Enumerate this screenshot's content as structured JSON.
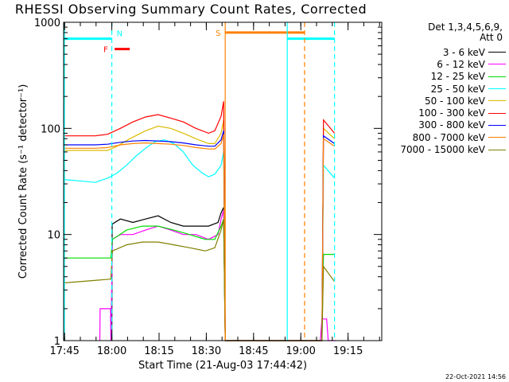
{
  "chart_data": {
    "type": "line",
    "title": "RHESSI Observing Summary Count Rates, Corrected",
    "xlabel": "Start Time (21-Aug-03 17:44:42)",
    "ylabel": "Corrected Count Rate (s⁻¹ detector⁻¹)",
    "yscale": "log",
    "ylim": [
      1,
      1000
    ],
    "xlim_minutes": [
      0,
      101
    ],
    "x_ticks": [
      "17:45",
      "18:00",
      "18:15",
      "18:30",
      "18:45",
      "19:00",
      "19:15"
    ],
    "x_tick_minutes": [
      0.3,
      15.3,
      30.3,
      45.3,
      60.3,
      75.3,
      90.3
    ],
    "y_ticks": [
      "1",
      "10",
      "100",
      "1000"
    ],
    "y_tick_values": [
      1,
      10,
      100,
      1000
    ],
    "detector_info": [
      "Det 1,3,4,5,6,9,",
      "Att 0"
    ],
    "series": [
      {
        "name": "3 - 6 keV",
        "color": "#000000",
        "points": [
          [
            15.3,
            1
          ],
          [
            15.4,
            12.5
          ],
          [
            18,
            14
          ],
          [
            22,
            13
          ],
          [
            26,
            14
          ],
          [
            30,
            15
          ],
          [
            34,
            13
          ],
          [
            38,
            12
          ],
          [
            42,
            12
          ],
          [
            46,
            12
          ],
          [
            49,
            13
          ],
          [
            50,
            16
          ],
          [
            50.8,
            18
          ],
          [
            51.3,
            1
          ]
        ]
      },
      {
        "name": "6 - 12 keV",
        "color": "#ff00ff",
        "points": [
          [
            11.5,
            1
          ],
          [
            11.6,
            2
          ],
          [
            14.9,
            2
          ],
          [
            15,
            1
          ],
          [
            15.5,
            9
          ],
          [
            18,
            10
          ],
          [
            22,
            10
          ],
          [
            26,
            11
          ],
          [
            30,
            12
          ],
          [
            34,
            11
          ],
          [
            38,
            10
          ],
          [
            42,
            10
          ],
          [
            46,
            9
          ],
          [
            49,
            10
          ],
          [
            50,
            14
          ],
          [
            50.8,
            17
          ],
          [
            51.3,
            1
          ],
          [
            76,
            1
          ],
          [
            81.5,
            1
          ],
          [
            82,
            1.6
          ],
          [
            83.5,
            1.6
          ],
          [
            84,
            1
          ],
          [
            86.5,
            1
          ]
        ]
      },
      {
        "name": "12 - 25 keV",
        "color": "#00dd00",
        "points": [
          [
            0,
            6
          ],
          [
            15,
            6
          ],
          [
            15.5,
            9
          ],
          [
            20,
            11
          ],
          [
            25,
            12
          ],
          [
            30,
            12
          ],
          [
            35,
            11
          ],
          [
            40,
            10
          ],
          [
            45,
            9
          ],
          [
            48,
            9
          ],
          [
            50,
            12
          ],
          [
            50.8,
            14
          ],
          [
            51.3,
            1
          ],
          [
            82,
            1
          ],
          [
            82.5,
            6.5
          ],
          [
            86,
            6.5
          ]
        ]
      },
      {
        "name": "25 - 50 keV",
        "color": "#00ffff",
        "points": [
          [
            0,
            33
          ],
          [
            5,
            32
          ],
          [
            10,
            31
          ],
          [
            14,
            34
          ],
          [
            17,
            38
          ],
          [
            20,
            45
          ],
          [
            23,
            55
          ],
          [
            26,
            65
          ],
          [
            29,
            75
          ],
          [
            32,
            78
          ],
          [
            35,
            72
          ],
          [
            38,
            60
          ],
          [
            41,
            45
          ],
          [
            44,
            38
          ],
          [
            46,
            35
          ],
          [
            48,
            37
          ],
          [
            50,
            45
          ],
          [
            50.8,
            60
          ],
          [
            51.3,
            1
          ],
          [
            82,
            1
          ],
          [
            82.5,
            45
          ],
          [
            86,
            34
          ]
        ]
      },
      {
        "name": "50 - 100 keV",
        "color": "#ddbb00",
        "points": [
          [
            0,
            62
          ],
          [
            10,
            62
          ],
          [
            14,
            62
          ],
          [
            17,
            68
          ],
          [
            21,
            80
          ],
          [
            26,
            95
          ],
          [
            30,
            105
          ],
          [
            34,
            100
          ],
          [
            38,
            90
          ],
          [
            42,
            80
          ],
          [
            46,
            72
          ],
          [
            48,
            72
          ],
          [
            50,
            90
          ],
          [
            50.8,
            120
          ],
          [
            51.3,
            1
          ],
          [
            82,
            1
          ],
          [
            82.5,
            100
          ],
          [
            86,
            80
          ]
        ]
      },
      {
        "name": "100 - 300 keV",
        "color": "#ff0000",
        "points": [
          [
            0,
            85
          ],
          [
            10,
            85
          ],
          [
            14,
            88
          ],
          [
            18,
            100
          ],
          [
            22,
            115
          ],
          [
            26,
            128
          ],
          [
            30,
            135
          ],
          [
            34,
            125
          ],
          [
            38,
            115
          ],
          [
            42,
            100
          ],
          [
            46,
            90
          ],
          [
            48,
            95
          ],
          [
            50,
            130
          ],
          [
            50.8,
            180
          ],
          [
            51.3,
            1
          ],
          [
            82,
            1
          ],
          [
            82.5,
            120
          ],
          [
            86,
            90
          ]
        ]
      },
      {
        "name": "300 - 800 keV",
        "color": "#0000ff",
        "points": [
          [
            0,
            70
          ],
          [
            10,
            70
          ],
          [
            14,
            71
          ],
          [
            18,
            74
          ],
          [
            22,
            76
          ],
          [
            26,
            77
          ],
          [
            30,
            76
          ],
          [
            34,
            75
          ],
          [
            38,
            73
          ],
          [
            42,
            70
          ],
          [
            46,
            68
          ],
          [
            48,
            68
          ],
          [
            50,
            78
          ],
          [
            50.8,
            95
          ],
          [
            51.3,
            1
          ],
          [
            82,
            1
          ],
          [
            82.5,
            85
          ],
          [
            86,
            72
          ]
        ]
      },
      {
        "name": "800 - 7000 keV",
        "color": "#ff8000",
        "points": [
          [
            0,
            65
          ],
          [
            10,
            65
          ],
          [
            14,
            66
          ],
          [
            18,
            70
          ],
          [
            22,
            72
          ],
          [
            26,
            73
          ],
          [
            30,
            72
          ],
          [
            34,
            71
          ],
          [
            38,
            69
          ],
          [
            42,
            66
          ],
          [
            46,
            64
          ],
          [
            48,
            64
          ],
          [
            50,
            72
          ],
          [
            50.8,
            88
          ],
          [
            51.3,
            1
          ],
          [
            82,
            1
          ],
          [
            82.5,
            80
          ],
          [
            86,
            68
          ]
        ]
      },
      {
        "name": "7000 - 15000 keV",
        "color": "#808000",
        "points": [
          [
            0,
            3.5
          ],
          [
            15,
            3.8
          ],
          [
            15.5,
            7
          ],
          [
            20,
            8
          ],
          [
            25,
            8.5
          ],
          [
            30,
            8.5
          ],
          [
            35,
            8
          ],
          [
            40,
            7.5
          ],
          [
            45,
            7
          ],
          [
            48,
            7.5
          ],
          [
            50,
            11
          ],
          [
            50.8,
            14
          ],
          [
            51.3,
            1
          ],
          [
            82,
            1
          ],
          [
            82.5,
            5
          ],
          [
            86,
            3.6
          ]
        ]
      }
    ],
    "flags": [
      {
        "name": "N",
        "color": "#00ffff",
        "level": 700,
        "start": 0,
        "end": 15.3
      },
      {
        "name": "N",
        "color": "#00ffff",
        "level": 700,
        "start": 71,
        "end": 86
      },
      {
        "name": "F",
        "color": "#ff0000",
        "level": 560,
        "start": 16.2,
        "end": 21
      },
      {
        "name": "S",
        "color": "#ff8000",
        "level": 800,
        "start": 51.3,
        "end": 76.5
      }
    ],
    "vertical_lines": [
      {
        "minute": 15.3,
        "color": "#00ffff",
        "style": "dashed"
      },
      {
        "minute": 51.3,
        "color": "#ff8000",
        "style": "solid"
      },
      {
        "minute": 71,
        "color": "#00ffff",
        "style": "solid"
      },
      {
        "minute": 76.5,
        "color": "#ff8000",
        "style": "dashed"
      },
      {
        "minute": 86,
        "color": "#00ffff",
        "style": "dashed"
      }
    ],
    "flag_labels": [
      "N",
      "F",
      "S"
    ]
  },
  "footer": "22-Oct-2021 14:56"
}
